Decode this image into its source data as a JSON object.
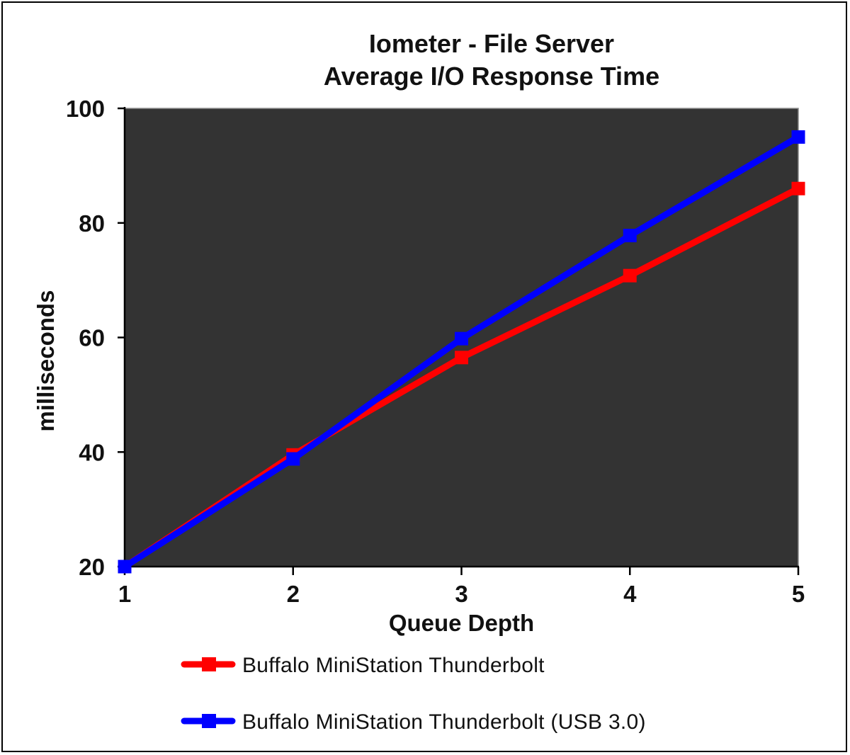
{
  "chart_data": {
    "type": "line",
    "title": "Iometer - File Server",
    "subtitle": "Average I/O Response Time",
    "xlabel": "Queue Depth",
    "ylabel": "milliseconds",
    "x": [
      1,
      2,
      3,
      4,
      5
    ],
    "xlim": [
      1,
      5
    ],
    "ylim": [
      20,
      100
    ],
    "xticks": [
      "1",
      "2",
      "3",
      "4",
      "5"
    ],
    "yticks": [
      "20",
      "40",
      "60",
      "80",
      "100"
    ],
    "grid": false,
    "legend_position": "bottom",
    "plot_background": "#333333",
    "series": [
      {
        "name": "Buffalo MiniStation Thunderbolt",
        "color": "#ff0000",
        "marker": "square",
        "values": [
          20,
          39.5,
          56.5,
          70.8,
          86
        ]
      },
      {
        "name": "Buffalo MiniStation Thunderbolt (USB 3.0)",
        "color": "#0000ff",
        "marker": "square",
        "values": [
          20,
          38.8,
          59.8,
          77.8,
          95
        ]
      }
    ]
  }
}
